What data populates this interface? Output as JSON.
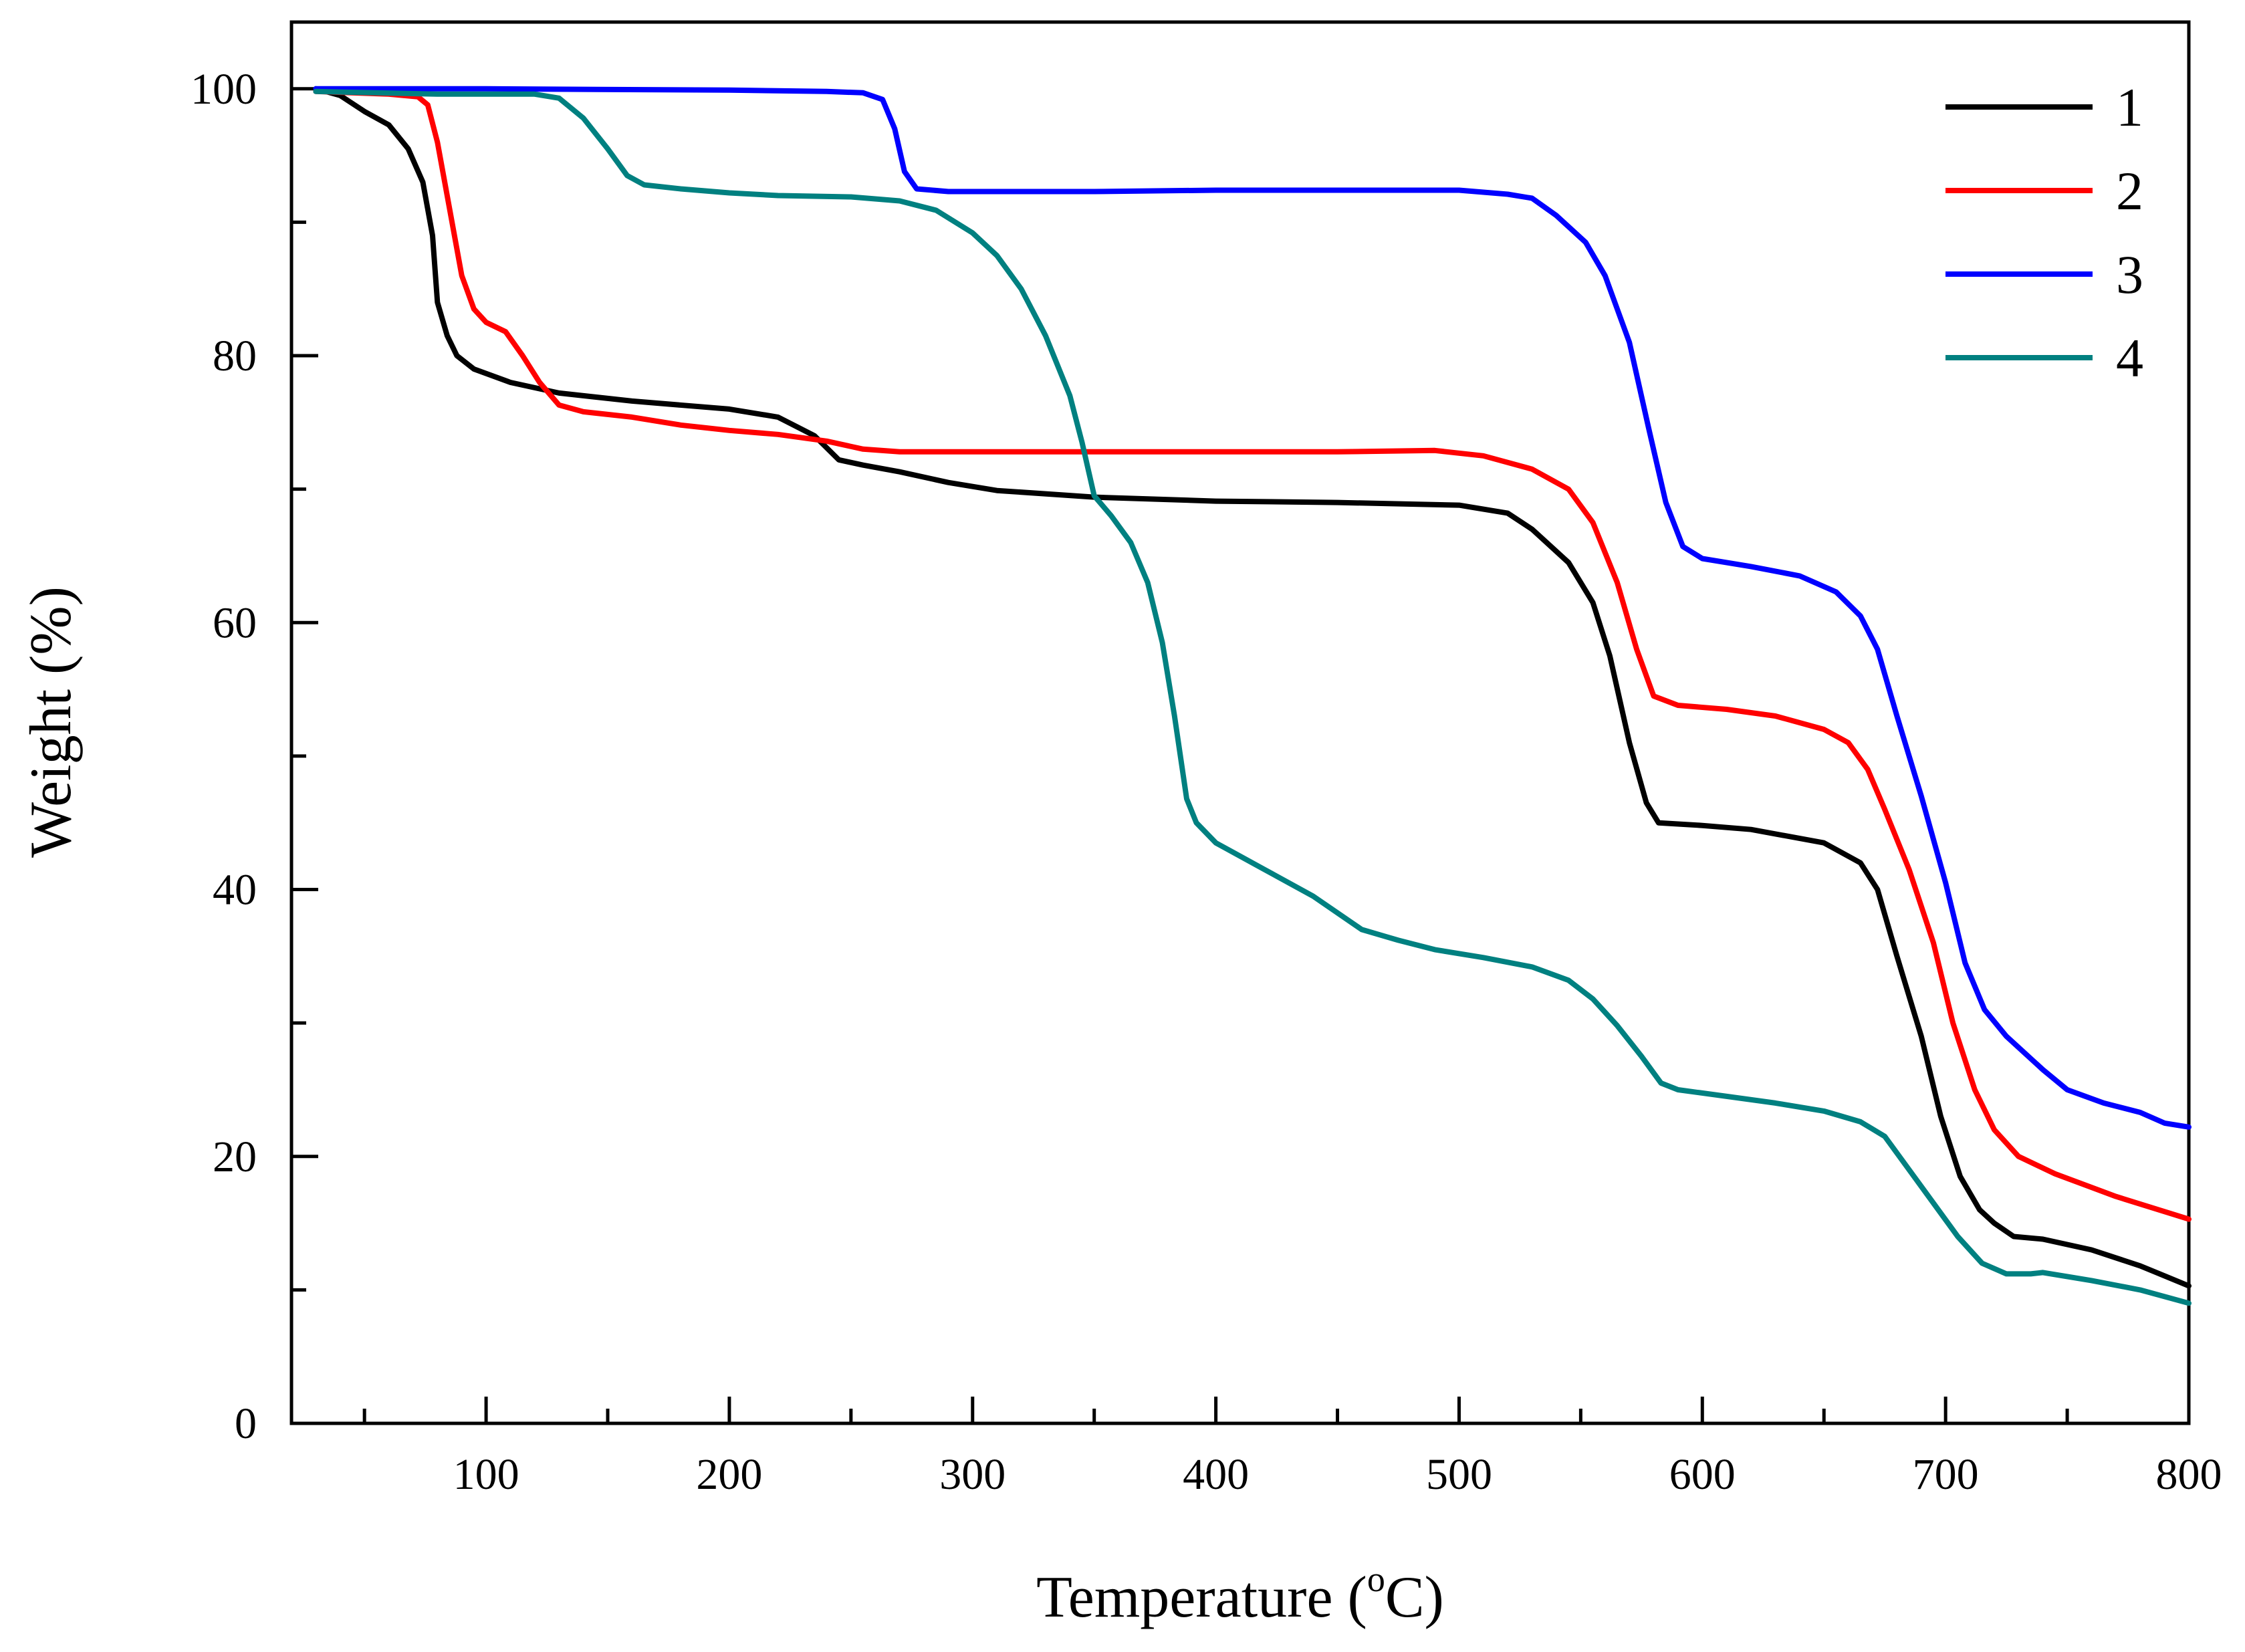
{
  "chart_data": {
    "type": "line",
    "title": "",
    "xlabel": "Temperature (",
    "xlabel_sup": "o",
    "xlabel_suffix": "C)",
    "ylabel": "Weight (%)",
    "xlim": [
      20,
      800
    ],
    "ylim": [
      0,
      105
    ],
    "x_ticks": [
      100,
      200,
      300,
      400,
      500,
      600,
      700,
      800
    ],
    "x_minor_ticks": [
      50,
      150,
      250,
      350,
      450,
      550,
      650,
      750
    ],
    "y_ticks": [
      0,
      20,
      40,
      60,
      80,
      100
    ],
    "y_minor_ticks": [
      10,
      30,
      50,
      70,
      90
    ],
    "legend_position": "top-right",
    "series": [
      {
        "name": "1",
        "color": "#000000",
        "points": [
          [
            30,
            100
          ],
          [
            40,
            99.5
          ],
          [
            50,
            98.3
          ],
          [
            60,
            97.3
          ],
          [
            68,
            95.5
          ],
          [
            74,
            93
          ],
          [
            78,
            89
          ],
          [
            80,
            84
          ],
          [
            84,
            81.5
          ],
          [
            88,
            80
          ],
          [
            95,
            79
          ],
          [
            110,
            78
          ],
          [
            130,
            77.2
          ],
          [
            160,
            76.6
          ],
          [
            200,
            76
          ],
          [
            220,
            75.4
          ],
          [
            235,
            74
          ],
          [
            245,
            72.2
          ],
          [
            255,
            71.8
          ],
          [
            270,
            71.3
          ],
          [
            290,
            70.5
          ],
          [
            310,
            69.9
          ],
          [
            350,
            69.4
          ],
          [
            400,
            69.1
          ],
          [
            450,
            69
          ],
          [
            500,
            68.8
          ],
          [
            520,
            68.2
          ],
          [
            530,
            67
          ],
          [
            545,
            64.5
          ],
          [
            555,
            61.5
          ],
          [
            562,
            57.5
          ],
          [
            570,
            51
          ],
          [
            577,
            46.5
          ],
          [
            582,
            45
          ],
          [
            600,
            44.8
          ],
          [
            620,
            44.5
          ],
          [
            650,
            43.5
          ],
          [
            665,
            42
          ],
          [
            672,
            40
          ],
          [
            680,
            35
          ],
          [
            690,
            29
          ],
          [
            698,
            23
          ],
          [
            706,
            18.5
          ],
          [
            714,
            16
          ],
          [
            720,
            15
          ],
          [
            728,
            14
          ],
          [
            740,
            13.8
          ],
          [
            760,
            13
          ],
          [
            780,
            11.8
          ],
          [
            800,
            10.3
          ]
        ]
      },
      {
        "name": "2",
        "color": "#ff0000",
        "points": [
          [
            30,
            99.8
          ],
          [
            60,
            99.6
          ],
          [
            72,
            99.4
          ],
          [
            76,
            98.8
          ],
          [
            80,
            96
          ],
          [
            85,
            91
          ],
          [
            90,
            86
          ],
          [
            95,
            83.5
          ],
          [
            100,
            82.5
          ],
          [
            108,
            81.8
          ],
          [
            115,
            80
          ],
          [
            122,
            78
          ],
          [
            130,
            76.3
          ],
          [
            140,
            75.8
          ],
          [
            160,
            75.4
          ],
          [
            180,
            74.8
          ],
          [
            200,
            74.4
          ],
          [
            220,
            74.1
          ],
          [
            240,
            73.6
          ],
          [
            255,
            73
          ],
          [
            270,
            72.8
          ],
          [
            300,
            72.8
          ],
          [
            350,
            72.8
          ],
          [
            400,
            72.8
          ],
          [
            450,
            72.8
          ],
          [
            490,
            72.9
          ],
          [
            510,
            72.5
          ],
          [
            530,
            71.5
          ],
          [
            545,
            70
          ],
          [
            555,
            67.5
          ],
          [
            565,
            63
          ],
          [
            573,
            58
          ],
          [
            580,
            54.5
          ],
          [
            590,
            53.8
          ],
          [
            610,
            53.5
          ],
          [
            630,
            53
          ],
          [
            650,
            52
          ],
          [
            660,
            51
          ],
          [
            668,
            49
          ],
          [
            675,
            46
          ],
          [
            685,
            41.5
          ],
          [
            695,
            36
          ],
          [
            703,
            30
          ],
          [
            712,
            25
          ],
          [
            720,
            22
          ],
          [
            730,
            20
          ],
          [
            745,
            18.7
          ],
          [
            770,
            17
          ],
          [
            800,
            15.3
          ]
        ]
      },
      {
        "name": "3",
        "color": "#0000ff",
        "points": [
          [
            30,
            100
          ],
          [
            100,
            100
          ],
          [
            200,
            99.9
          ],
          [
            240,
            99.8
          ],
          [
            255,
            99.7
          ],
          [
            263,
            99.2
          ],
          [
            268,
            97
          ],
          [
            272,
            93.8
          ],
          [
            277,
            92.5
          ],
          [
            290,
            92.3
          ],
          [
            350,
            92.3
          ],
          [
            400,
            92.4
          ],
          [
            450,
            92.4
          ],
          [
            500,
            92.4
          ],
          [
            520,
            92.1
          ],
          [
            530,
            91.8
          ],
          [
            540,
            90.5
          ],
          [
            552,
            88.5
          ],
          [
            560,
            86
          ],
          [
            570,
            81
          ],
          [
            578,
            74.5
          ],
          [
            585,
            69
          ],
          [
            592,
            65.7
          ],
          [
            600,
            64.8
          ],
          [
            620,
            64.2
          ],
          [
            640,
            63.5
          ],
          [
            655,
            62.3
          ],
          [
            665,
            60.5
          ],
          [
            672,
            58
          ],
          [
            680,
            53
          ],
          [
            690,
            47
          ],
          [
            700,
            40.5
          ],
          [
            708,
            34.5
          ],
          [
            716,
            31
          ],
          [
            725,
            29
          ],
          [
            740,
            26.5
          ],
          [
            750,
            25
          ],
          [
            765,
            24
          ],
          [
            780,
            23.3
          ],
          [
            790,
            22.5
          ],
          [
            800,
            22.2
          ]
        ]
      },
      {
        "name": "4",
        "color": "#008080",
        "points": [
          [
            30,
            99.8
          ],
          [
            80,
            99.6
          ],
          [
            120,
            99.6
          ],
          [
            130,
            99.3
          ],
          [
            140,
            97.8
          ],
          [
            150,
            95.5
          ],
          [
            158,
            93.5
          ],
          [
            165,
            92.8
          ],
          [
            180,
            92.5
          ],
          [
            200,
            92.2
          ],
          [
            220,
            92
          ],
          [
            250,
            91.9
          ],
          [
            270,
            91.6
          ],
          [
            285,
            90.9
          ],
          [
            300,
            89.2
          ],
          [
            310,
            87.5
          ],
          [
            320,
            85
          ],
          [
            330,
            81.5
          ],
          [
            340,
            77
          ],
          [
            345,
            73.5
          ],
          [
            350,
            69.5
          ],
          [
            357,
            68
          ],
          [
            365,
            66
          ],
          [
            372,
            63
          ],
          [
            378,
            58.5
          ],
          [
            383,
            53
          ],
          [
            388,
            46.8
          ],
          [
            392,
            45
          ],
          [
            400,
            43.5
          ],
          [
            420,
            41.5
          ],
          [
            440,
            39.5
          ],
          [
            452,
            38
          ],
          [
            460,
            37
          ],
          [
            475,
            36.2
          ],
          [
            490,
            35.5
          ],
          [
            510,
            34.9
          ],
          [
            530,
            34.2
          ],
          [
            545,
            33.2
          ],
          [
            555,
            31.8
          ],
          [
            565,
            29.8
          ],
          [
            575,
            27.5
          ],
          [
            583,
            25.5
          ],
          [
            590,
            25
          ],
          [
            610,
            24.5
          ],
          [
            630,
            24
          ],
          [
            650,
            23.4
          ],
          [
            665,
            22.6
          ],
          [
            675,
            21.5
          ],
          [
            685,
            19
          ],
          [
            695,
            16.5
          ],
          [
            705,
            14
          ],
          [
            715,
            12
          ],
          [
            725,
            11.2
          ],
          [
            735,
            11.2
          ],
          [
            740,
            11.3
          ],
          [
            760,
            10.7
          ],
          [
            780,
            10
          ],
          [
            800,
            9
          ]
        ]
      }
    ]
  }
}
